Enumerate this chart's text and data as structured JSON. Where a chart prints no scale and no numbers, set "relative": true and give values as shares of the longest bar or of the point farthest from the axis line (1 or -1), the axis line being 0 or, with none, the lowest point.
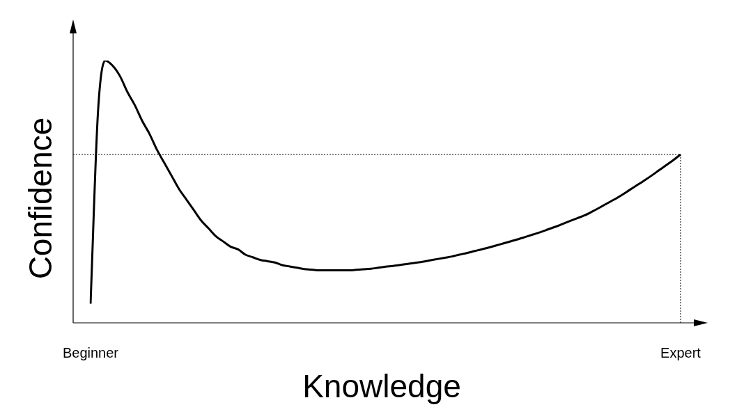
{
  "chart_data": {
    "type": "line",
    "xlabel": "Knowledge",
    "ylabel": "Confidence",
    "relative": true,
    "legend": false,
    "categories": [
      "Beginner",
      null,
      null,
      null,
      null,
      null,
      null,
      null,
      null,
      null,
      null,
      null,
      null,
      null,
      null,
      null,
      null,
      null,
      null,
      null,
      null,
      null,
      null,
      null,
      null,
      null,
      null,
      null,
      null,
      null,
      null,
      null,
      null,
      null,
      null,
      null,
      null,
      null,
      null,
      null,
      null,
      null,
      null,
      null,
      null,
      null,
      null,
      null,
      null,
      null,
      null,
      null,
      null,
      null,
      null,
      null,
      null,
      null,
      null,
      null,
      null,
      null,
      null,
      null,
      null,
      null,
      null,
      null,
      null,
      null,
      null,
      null,
      null,
      null,
      null,
      null,
      null,
      null,
      null,
      null,
      "Expert"
    ],
    "series": [
      {
        "color": "#000000",
        "values": [
          0.073,
          0.8,
          1,
          0.98,
          0.94,
          0.88,
          0.83,
          0.77,
          0.72,
          0.66,
          0.61,
          0.56,
          0.51,
          0.47,
          0.43,
          0.39,
          0.36,
          0.33,
          0.31,
          0.29,
          0.28,
          0.26,
          0.25,
          0.24,
          0.235,
          0.23,
          0.22,
          0.215,
          0.21,
          0.205,
          0.203,
          0.2,
          0.2,
          0.2,
          0.2,
          0.2,
          0.202,
          0.204,
          0.206,
          0.21,
          0.214,
          0.217,
          0.221,
          0.225,
          0.229,
          0.233,
          0.238,
          0.243,
          0.248,
          0.253,
          0.26,
          0.266,
          0.273,
          0.28,
          0.287,
          0.295,
          0.303,
          0.311,
          0.319,
          0.328,
          0.337,
          0.346,
          0.356,
          0.366,
          0.377,
          0.388,
          0.399,
          0.41,
          0.424,
          0.439,
          0.455,
          0.47,
          0.487,
          0.505,
          0.523,
          0.541,
          0.56,
          0.58,
          0.6,
          0.62,
          0.642
        ]
      }
    ],
    "ref_lines": [
      {
        "axis": "y",
        "value": 0.642,
        "line_style": "dotted",
        "color": "#000000"
      },
      {
        "axis": "x",
        "value": "Expert",
        "line_style": "dotted",
        "color": "#000000"
      }
    ]
  }
}
